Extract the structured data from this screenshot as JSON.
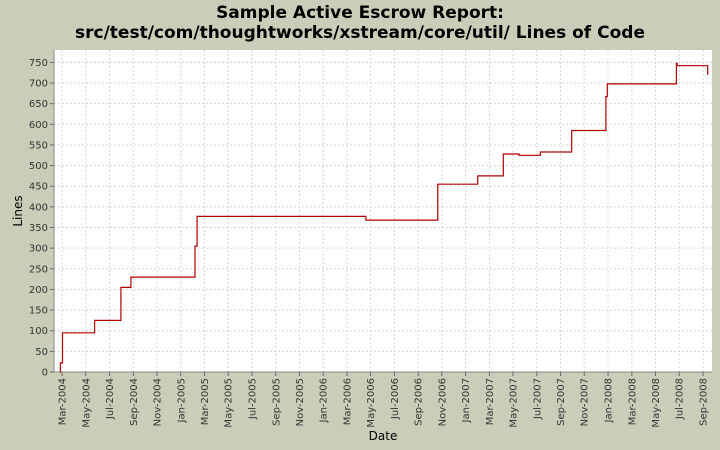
{
  "chart_data": {
    "type": "line",
    "step": true,
    "title": "Sample Active Escrow Report:",
    "subtitle": "src/test/com/thoughtworks/xstream/core/util/ Lines of Code",
    "xlabel": "Date",
    "ylabel": "Lines",
    "ylim": [
      0,
      780
    ],
    "yticks": [
      0,
      50,
      100,
      150,
      200,
      250,
      300,
      350,
      400,
      450,
      500,
      550,
      600,
      650,
      700,
      750
    ],
    "xlim": [
      2004.11,
      2008.73
    ],
    "xticks": [
      {
        "x": 2004.167,
        "label": "Mar-2004"
      },
      {
        "x": 2004.333,
        "label": "May-2004"
      },
      {
        "x": 2004.5,
        "label": "Jul-2004"
      },
      {
        "x": 2004.667,
        "label": "Sep-2004"
      },
      {
        "x": 2004.833,
        "label": "Nov-2004"
      },
      {
        "x": 2005.0,
        "label": "Jan-2005"
      },
      {
        "x": 2005.167,
        "label": "Mar-2005"
      },
      {
        "x": 2005.333,
        "label": "May-2005"
      },
      {
        "x": 2005.5,
        "label": "Jul-2005"
      },
      {
        "x": 2005.667,
        "label": "Sep-2005"
      },
      {
        "x": 2005.833,
        "label": "Nov-2005"
      },
      {
        "x": 2006.0,
        "label": "Jan-2006"
      },
      {
        "x": 2006.167,
        "label": "Mar-2006"
      },
      {
        "x": 2006.333,
        "label": "May-2006"
      },
      {
        "x": 2006.5,
        "label": "Jul-2006"
      },
      {
        "x": 2006.667,
        "label": "Sep-2006"
      },
      {
        "x": 2006.833,
        "label": "Nov-2006"
      },
      {
        "x": 2007.0,
        "label": "Jan-2007"
      },
      {
        "x": 2007.167,
        "label": "Mar-2007"
      },
      {
        "x": 2007.333,
        "label": "May-2007"
      },
      {
        "x": 2007.5,
        "label": "Jul-2007"
      },
      {
        "x": 2007.667,
        "label": "Sep-2007"
      },
      {
        "x": 2007.833,
        "label": "Nov-2007"
      },
      {
        "x": 2008.0,
        "label": "Jan-2008"
      },
      {
        "x": 2008.167,
        "label": "Mar-2008"
      },
      {
        "x": 2008.333,
        "label": "May-2008"
      },
      {
        "x": 2008.5,
        "label": "Jul-2008"
      },
      {
        "x": 2008.667,
        "label": "Sep-2008"
      }
    ],
    "grid": true,
    "series": [
      {
        "name": "Lines of Code",
        "color": "#b00000",
        "points": [
          [
            2004.15,
            0
          ],
          [
            2004.155,
            22
          ],
          [
            2004.17,
            95
          ],
          [
            2004.395,
            125
          ],
          [
            2004.58,
            205
          ],
          [
            2004.65,
            230
          ],
          [
            2005.1,
            305
          ],
          [
            2005.115,
            377
          ],
          [
            2006.3,
            368
          ],
          [
            2006.805,
            455
          ],
          [
            2007.085,
            475
          ],
          [
            2007.265,
            528
          ],
          [
            2007.375,
            525
          ],
          [
            2007.525,
            533
          ],
          [
            2007.745,
            585
          ],
          [
            2007.985,
            667
          ],
          [
            2007.995,
            698
          ],
          [
            2008.48,
            748
          ],
          [
            2008.485,
            742
          ],
          [
            2008.7,
            720
          ]
        ]
      }
    ]
  },
  "colors": {
    "background": "#cccdb8",
    "plot_background": "#ffffff",
    "grid": "#d8d8d8",
    "line": "#b00000"
  }
}
